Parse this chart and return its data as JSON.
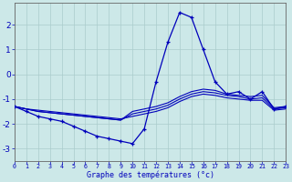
{
  "xlabel": "Graphe des températures (°c)",
  "background_color": "#cce8e8",
  "grid_color": "#aacccc",
  "line_color": "#0000bb",
  "hours": [
    0,
    1,
    2,
    3,
    4,
    5,
    6,
    7,
    8,
    9,
    10,
    11,
    12,
    13,
    14,
    15,
    16,
    17,
    18,
    19,
    20,
    21,
    22,
    23
  ],
  "temp_main": [
    -1.3,
    -1.5,
    -1.7,
    -1.8,
    -1.9,
    -2.1,
    -2.3,
    -2.5,
    -2.6,
    -2.7,
    -2.8,
    -2.2,
    -0.3,
    1.3,
    2.5,
    2.3,
    1.0,
    -0.3,
    -0.8,
    -0.7,
    -1.0,
    -0.7,
    -1.4,
    -1.3
  ],
  "temp_line2": [
    -1.3,
    -1.4,
    -1.5,
    -1.55,
    -1.6,
    -1.65,
    -1.7,
    -1.75,
    -1.8,
    -1.85,
    -1.5,
    -1.4,
    -1.3,
    -1.15,
    -0.9,
    -0.7,
    -0.6,
    -0.65,
    -0.8,
    -0.85,
    -0.9,
    -0.85,
    -1.35,
    -1.3
  ],
  "temp_line3": [
    -1.3,
    -1.4,
    -1.5,
    -1.55,
    -1.6,
    -1.65,
    -1.7,
    -1.75,
    -1.8,
    -1.85,
    -1.6,
    -1.5,
    -1.4,
    -1.25,
    -1.0,
    -0.8,
    -0.7,
    -0.75,
    -0.85,
    -0.9,
    -1.0,
    -0.95,
    -1.4,
    -1.35
  ],
  "temp_line4": [
    -1.3,
    -1.4,
    -1.45,
    -1.5,
    -1.55,
    -1.6,
    -1.65,
    -1.7,
    -1.75,
    -1.8,
    -1.7,
    -1.6,
    -1.5,
    -1.35,
    -1.1,
    -0.9,
    -0.8,
    -0.85,
    -0.95,
    -1.0,
    -1.05,
    -1.05,
    -1.45,
    -1.4
  ],
  "ylim": [
    -3.5,
    2.9
  ],
  "yticks": [
    -3,
    -2,
    -1,
    0,
    1,
    2
  ],
  "xlim": [
    0,
    23
  ],
  "xticks": [
    0,
    1,
    2,
    3,
    4,
    5,
    6,
    7,
    8,
    9,
    10,
    11,
    12,
    13,
    14,
    15,
    16,
    17,
    18,
    19,
    20,
    21,
    22,
    23
  ]
}
